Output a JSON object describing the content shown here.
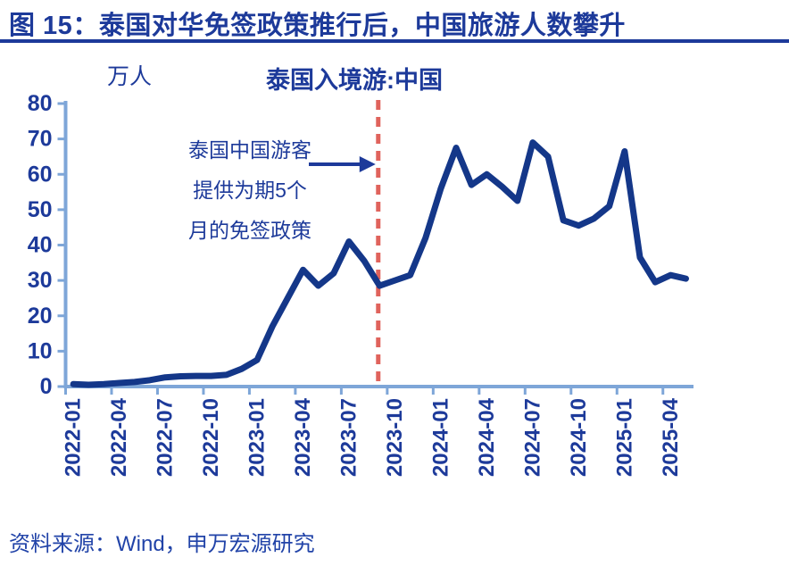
{
  "header": {
    "figure_title": "图 15：泰国对华免签政策推行后，中国旅游人数攀升"
  },
  "footer": {
    "source": "资料来源：Wind，申万宏源研究"
  },
  "chart_data": {
    "type": "line",
    "title": "泰国入境游:中国",
    "unit_label": "万人",
    "xlabel": "",
    "ylabel": "万人",
    "ylim": [
      0,
      80
    ],
    "ytick_step": 10,
    "grid": false,
    "legend": false,
    "x_tick_every": 3,
    "x": [
      "2022-01",
      "2022-02",
      "2022-03",
      "2022-04",
      "2022-05",
      "2022-06",
      "2022-07",
      "2022-08",
      "2022-09",
      "2022-10",
      "2022-11",
      "2022-12",
      "2023-01",
      "2023-02",
      "2023-03",
      "2023-04",
      "2023-05",
      "2023-06",
      "2023-07",
      "2023-08",
      "2023-09",
      "2023-10",
      "2023-11",
      "2023-12",
      "2024-01",
      "2024-02",
      "2024-03",
      "2024-04",
      "2024-05",
      "2024-06",
      "2024-07",
      "2024-08",
      "2024-09",
      "2024-10",
      "2024-11",
      "2024-12",
      "2025-01",
      "2025-02",
      "2025-03",
      "2025-04",
      "2025-05"
    ],
    "values": [
      0.7,
      0.5,
      0.7,
      1.0,
      1.3,
      1.8,
      2.6,
      2.9,
      3.0,
      3.0,
      3.3,
      5.0,
      7.5,
      17,
      25,
      33,
      28.5,
      32,
      41,
      35.5,
      28.5,
      30,
      31.5,
      42,
      56,
      67.5,
      57,
      60,
      56.5,
      52.5,
      69,
      65,
      47,
      45.5,
      47.5,
      51,
      66.5,
      36.5,
      29.5,
      31.5,
      30.5
    ],
    "series_name": "泰国入境游:中国",
    "annotation": {
      "lines": [
        "泰国中国游客",
        "提供为期5个",
        "月的免签政策"
      ]
    },
    "policy_line": {
      "month": "2023-09",
      "style": "dashed"
    },
    "colors": {
      "line": "#143789",
      "axis": "#7ea6d8",
      "text": "#1d3a9a",
      "policy_line": "#e0635c"
    }
  }
}
